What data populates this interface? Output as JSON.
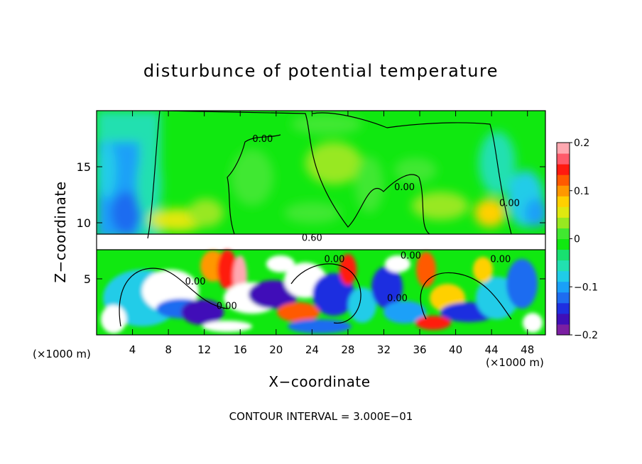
{
  "chart_data": {
    "type": "heatmap",
    "title": "disturbunce of potential temperature",
    "xlabel": "X−coordinate",
    "ylabel": "Z−coordinate",
    "x_unit": "(×1000 m)",
    "x_unit_right": "(×1000 m)",
    "footer": "CONTOUR INTERVAL = 3.000E−01",
    "xlim": [
      0,
      50
    ],
    "ylim": [
      0,
      20
    ],
    "x_ticks": [
      "4",
      "8",
      "12",
      "16",
      "20",
      "24",
      "28",
      "32",
      "36",
      "40",
      "44",
      "48"
    ],
    "x_tick_values": [
      4,
      8,
      12,
      16,
      20,
      24,
      28,
      32,
      36,
      40,
      44,
      48
    ],
    "y_ticks": [
      "5",
      "10",
      "15"
    ],
    "y_tick_values": [
      5,
      10,
      15
    ],
    "colorbar": {
      "min": -0.2,
      "max": 0.2,
      "tick_labels": [
        "0.2",
        "0.1",
        "0",
        "−0.1",
        "−0.2"
      ],
      "tick_values": [
        0.2,
        0.1,
        0,
        -0.1,
        -0.2
      ],
      "colors": [
        "#7b1fa2",
        "#3f0fb8",
        "#1f2fe0",
        "#1e6cf0",
        "#1aa0f8",
        "#20cce8",
        "#22e0b0",
        "#18e070",
        "#10e810",
        "#40e830",
        "#98e820",
        "#e0e810",
        "#ffd000",
        "#ff9800",
        "#ff5a00",
        "#ff1a10",
        "#ff5a6a",
        "#ffa8b0"
      ]
    },
    "contour_labels": [
      {
        "text": "0.00",
        "x": 18.5,
        "z": 17.2
      },
      {
        "text": "0.00",
        "x": 34.3,
        "z": 12.9
      },
      {
        "text": "0.00",
        "x": 46.0,
        "z": 11.5
      },
      {
        "text": "0.60",
        "x": 24.0,
        "z": 8.4
      },
      {
        "text": "0.00",
        "x": 26.5,
        "z": 6.5
      },
      {
        "text": "0.00",
        "x": 35.0,
        "z": 6.8
      },
      {
        "text": "0.00",
        "x": 45.0,
        "z": 6.5
      },
      {
        "text": "0.00",
        "x": 11.0,
        "z": 4.5
      },
      {
        "text": "0.00",
        "x": 14.5,
        "z": 2.3
      },
      {
        "text": "0.00",
        "x": 33.5,
        "z": 3.0
      }
    ]
  }
}
